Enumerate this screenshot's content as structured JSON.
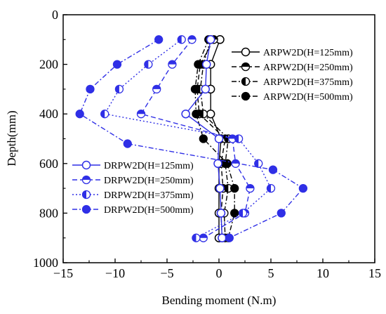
{
  "chart_data": {
    "type": "line",
    "title": "",
    "xlabel": "Bending moment (N.m)",
    "ylabel": "Depth(mm)",
    "xlim": [
      -15,
      15
    ],
    "ylim": [
      1000,
      0
    ],
    "x_ticks": [
      -15,
      -10,
      -5,
      0,
      5,
      10,
      15
    ],
    "y_ticks": [
      0,
      200,
      400,
      600,
      800,
      1000
    ],
    "grid": false,
    "legends": {
      "ARPW2D": "top-right",
      "DRPW2D": "bottom-left"
    },
    "series": [
      {
        "name": "ARPW2D(H=125mm)",
        "group": "ARPW2D",
        "color": "#000000",
        "marker": "open-circle",
        "line": "solid",
        "points": [
          [
            0.1,
            100
          ],
          [
            -0.8,
            200
          ],
          [
            -0.8,
            300
          ],
          [
            -0.8,
            400
          ],
          [
            0.2,
            500
          ],
          [
            0.0,
            600
          ],
          [
            0.0,
            700
          ],
          [
            0.0,
            800
          ],
          [
            0.0,
            900
          ]
        ]
      },
      {
        "name": "ARPW2D(H=250mm)",
        "group": "ARPW2D",
        "color": "#000000",
        "marker": "half-circle",
        "line": "dashed",
        "points": [
          [
            -0.5,
            100
          ],
          [
            -1.8,
            200
          ],
          [
            -2.1,
            300
          ],
          [
            -1.9,
            400
          ],
          [
            0.6,
            500
          ],
          [
            0.2,
            600
          ],
          [
            0.4,
            700
          ],
          [
            0.2,
            800
          ],
          [
            0.3,
            900
          ]
        ]
      },
      {
        "name": "ARPW2D(H=375mm)",
        "group": "ARPW2D",
        "color": "#000000",
        "marker": "half-circle-left",
        "line": "dashdot",
        "points": [
          [
            -0.8,
            100
          ],
          [
            -1.5,
            200
          ],
          [
            -1.8,
            300
          ],
          [
            -1.5,
            400
          ],
          [
            0.9,
            500
          ],
          [
            0.6,
            600
          ],
          [
            0.9,
            700
          ],
          [
            0.5,
            800
          ],
          [
            0.6,
            900
          ]
        ]
      },
      {
        "name": "ARPW2D(H=500mm)",
        "group": "ARPW2D",
        "color": "#000000",
        "marker": "filled-circle",
        "line": "dashdot",
        "points": [
          [
            -1.0,
            100
          ],
          [
            -2.0,
            200
          ],
          [
            -2.3,
            300
          ],
          [
            -2.2,
            400
          ],
          [
            -1.5,
            500
          ],
          [
            0.8,
            600
          ],
          [
            1.5,
            700
          ],
          [
            1.5,
            800
          ],
          [
            0.9,
            900
          ]
        ]
      },
      {
        "name": "DRPW2D(H=125mm)",
        "group": "DRPW2D",
        "color": "#2f2fe6",
        "marker": "open-circle",
        "line": "solid",
        "points": [
          [
            -0.8,
            100
          ],
          [
            -1.2,
            200
          ],
          [
            -1.3,
            300
          ],
          [
            -3.2,
            400
          ],
          [
            0.0,
            500
          ],
          [
            -0.1,
            600
          ],
          [
            0.1,
            700
          ],
          [
            0.2,
            800
          ],
          [
            0.3,
            900
          ]
        ]
      },
      {
        "name": "DRPW2D(H=250mm)",
        "group": "DRPW2D",
        "color": "#2f2fe6",
        "marker": "half-circle",
        "line": "dashed",
        "points": [
          [
            -2.6,
            100
          ],
          [
            -4.5,
            200
          ],
          [
            -6.0,
            300
          ],
          [
            -7.5,
            400
          ],
          [
            1.3,
            500
          ],
          [
            1.6,
            600
          ],
          [
            3.0,
            700
          ],
          [
            2.5,
            800
          ],
          [
            -1.5,
            900
          ]
        ]
      },
      {
        "name": "DRPW2D(H=375mm)",
        "group": "DRPW2D",
        "color": "#2f2fe6",
        "marker": "half-circle-left",
        "line": "dotted",
        "points": [
          [
            -3.6,
            100
          ],
          [
            -6.8,
            200
          ],
          [
            -9.6,
            300
          ],
          [
            -11.0,
            400
          ],
          [
            1.9,
            500
          ],
          [
            3.8,
            600
          ],
          [
            5.0,
            700
          ],
          [
            2.3,
            800
          ],
          [
            -2.2,
            900
          ]
        ]
      },
      {
        "name": "DRPW2D(H=500mm)",
        "group": "DRPW2D",
        "color": "#2f2fe6",
        "marker": "filled-circle",
        "line": "dashdot",
        "points": [
          [
            -5.8,
            100
          ],
          [
            -9.8,
            200
          ],
          [
            -12.4,
            300
          ],
          [
            -13.4,
            400
          ],
          [
            -8.8,
            520
          ],
          [
            5.2,
            625
          ],
          [
            8.1,
            700
          ],
          [
            6.0,
            800
          ],
          [
            1.0,
            900
          ]
        ]
      }
    ]
  }
}
